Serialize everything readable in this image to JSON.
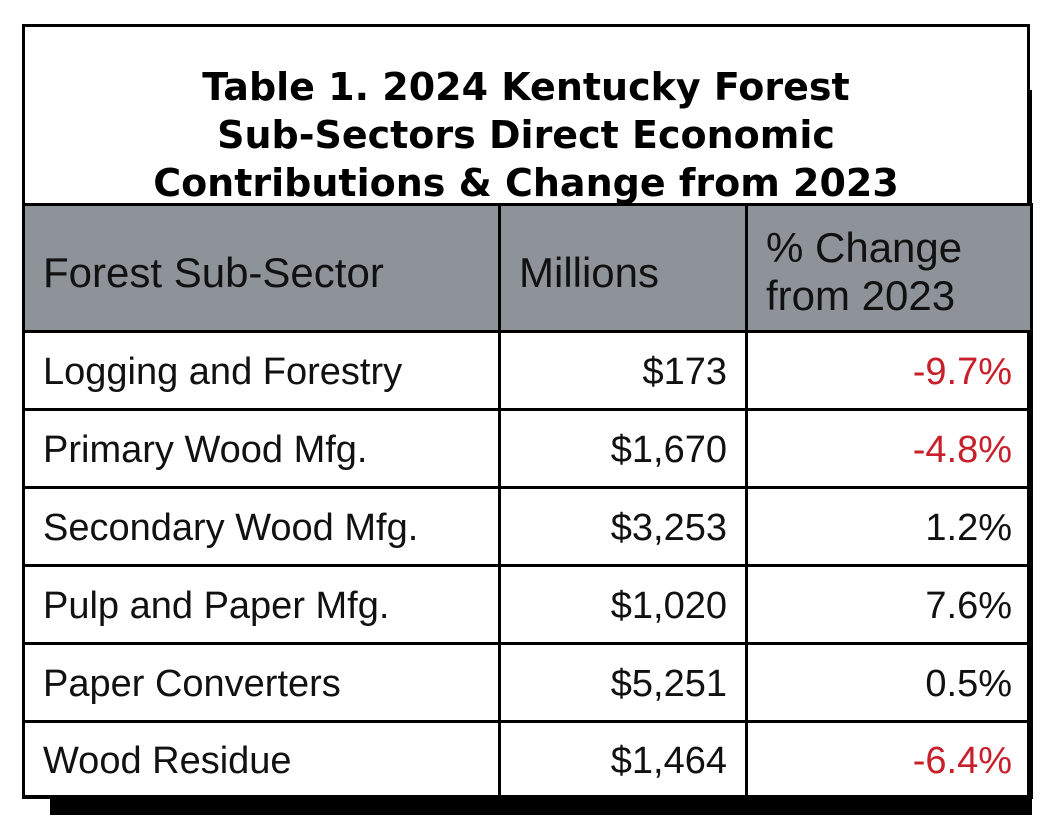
{
  "title": "Table 1. 2024 Kentucky Forest\nSub-Sectors Direct Economic\nContributions & Change from 2023",
  "colors": {
    "header_bg": "#8e939a",
    "negative": "#c8202a",
    "border": "#000000"
  },
  "columns": [
    "Forest Sub-Sector",
    "Millions",
    "% Change\nfrom 2023"
  ],
  "rows": [
    {
      "sector": "Logging and Forestry",
      "millions": "$173",
      "change": "-9.7%"
    },
    {
      "sector": "Primary Wood Mfg.",
      "millions": "$1,670",
      "change": "-4.8%"
    },
    {
      "sector": "Secondary Wood Mfg.",
      "millions": "$3,253",
      "change": "1.2%"
    },
    {
      "sector": "Pulp and Paper Mfg.",
      "millions": "$1,020",
      "change": "7.6%"
    },
    {
      "sector": "Paper Converters",
      "millions": "$5,251",
      "change": "0.5%"
    },
    {
      "sector": "Wood Residue",
      "millions": "$1,464",
      "change": "-6.4%"
    }
  ]
}
